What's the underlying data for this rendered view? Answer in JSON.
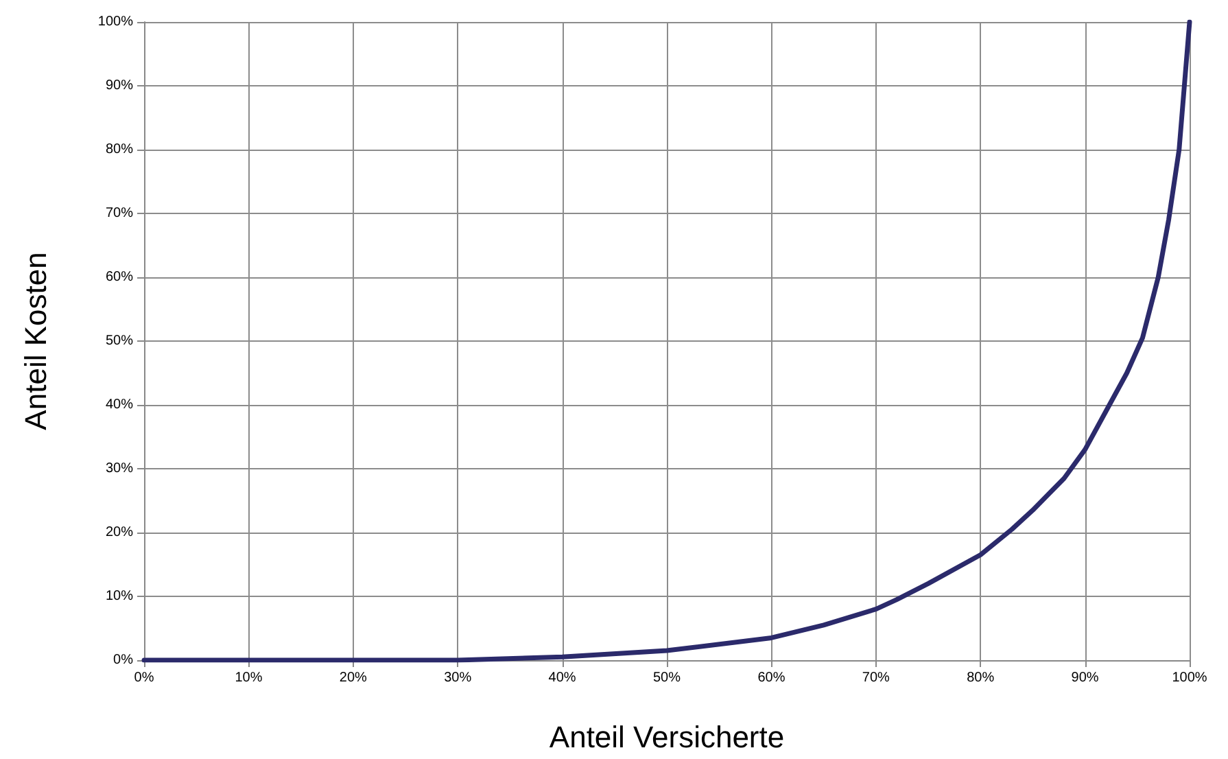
{
  "chart_data": {
    "type": "line",
    "xlabel": "Anteil Versicherte",
    "ylabel": "Anteil Kosten",
    "x": [
      0,
      10,
      20,
      30,
      40,
      50,
      60,
      65,
      70,
      72,
      75,
      80,
      83,
      85,
      88,
      90,
      92,
      94,
      95.5,
      97,
      98,
      99,
      100
    ],
    "series": [
      {
        "color": "#2b2a6b",
        "values": [
          0,
          0,
          0,
          0,
          0.5,
          1.5,
          3.5,
          5.5,
          8,
          9.5,
          12,
          16.5,
          20.5,
          23.5,
          28.5,
          33,
          39,
          45,
          50.5,
          60,
          69,
          80,
          100
        ]
      }
    ],
    "xlim": [
      0,
      100
    ],
    "ylim": [
      0,
      100
    ],
    "xticks": [
      {
        "value": 0,
        "label": "0%"
      },
      {
        "value": 10,
        "label": "10%"
      },
      {
        "value": 20,
        "label": "20%"
      },
      {
        "value": 30,
        "label": "30%"
      },
      {
        "value": 40,
        "label": "40%"
      },
      {
        "value": 50,
        "label": "50%"
      },
      {
        "value": 60,
        "label": "60%"
      },
      {
        "value": 70,
        "label": "70%"
      },
      {
        "value": 80,
        "label": "80%"
      },
      {
        "value": 90,
        "label": "90%"
      },
      {
        "value": 100,
        "label": "100%"
      }
    ],
    "yticks": [
      {
        "value": 0,
        "label": "0%"
      },
      {
        "value": 10,
        "label": "10%"
      },
      {
        "value": 20,
        "label": "20%"
      },
      {
        "value": 30,
        "label": "30%"
      },
      {
        "value": 40,
        "label": "40%"
      },
      {
        "value": 50,
        "label": "50%"
      },
      {
        "value": 60,
        "label": "60%"
      },
      {
        "value": 70,
        "label": "70%"
      },
      {
        "value": 80,
        "label": "80%"
      },
      {
        "value": 90,
        "label": "90%"
      },
      {
        "value": 100,
        "label": "100%"
      }
    ],
    "grid": true,
    "marker": "none",
    "line_style": "solid"
  }
}
